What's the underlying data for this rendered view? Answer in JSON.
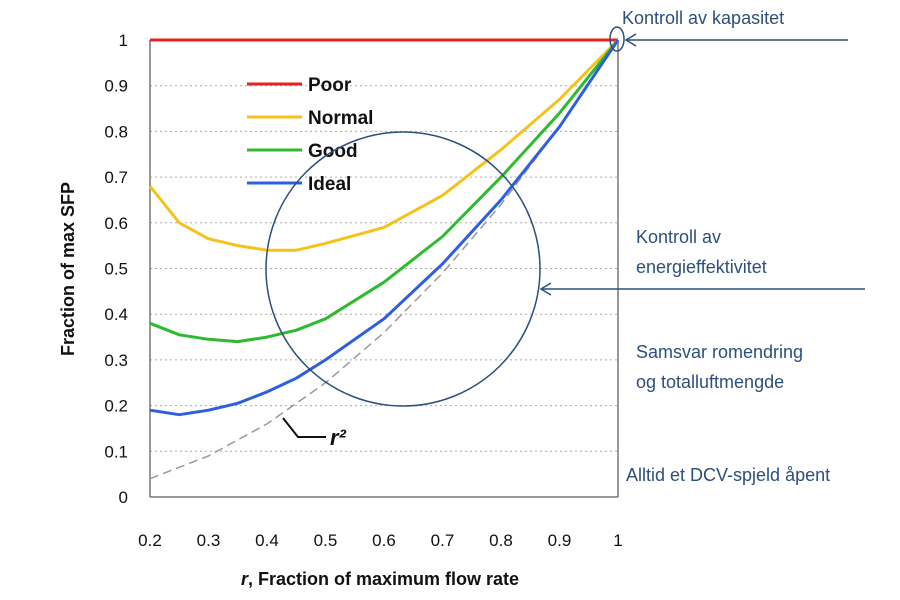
{
  "chart_data": {
    "type": "line",
    "xlabel_var": "r",
    "xlabel": ", Fraction of maximum flow rate",
    "ylabel": "Fraction of max SFP",
    "xlim": [
      0.2,
      1
    ],
    "ylim": [
      0,
      1
    ],
    "x_ticks": [
      "0.2",
      "0.3",
      "0.4",
      "0.5",
      "0.6",
      "0.7",
      "0.8",
      "0.9",
      "1"
    ],
    "y_ticks": [
      "0",
      "0.1",
      "0.2",
      "0.3",
      "0.4",
      "0.5",
      "0.6",
      "0.7",
      "0.8",
      "0.9",
      "1"
    ],
    "grid": "horizontal dotted",
    "legend_position": "top-left",
    "x": [
      0.2,
      0.25,
      0.3,
      0.35,
      0.4,
      0.45,
      0.5,
      0.6,
      0.7,
      0.8,
      0.9,
      1.0
    ],
    "series": [
      {
        "name": "Poor",
        "color": "#e8231f",
        "values": [
          1,
          1,
          1,
          1,
          1,
          1,
          1,
          1,
          1,
          1,
          1,
          1
        ]
      },
      {
        "name": "Normal",
        "color": "#f5c21b",
        "values": [
          0.68,
          0.6,
          0.565,
          0.55,
          0.54,
          0.54,
          0.555,
          0.59,
          0.66,
          0.76,
          0.87,
          1.0
        ]
      },
      {
        "name": "Good",
        "color": "#2dbb2d",
        "values": [
          0.38,
          0.355,
          0.345,
          0.34,
          0.35,
          0.365,
          0.39,
          0.47,
          0.57,
          0.7,
          0.84,
          1.0
        ]
      },
      {
        "name": "Ideal",
        "color": "#2f5fe0",
        "values": [
          0.19,
          0.18,
          0.19,
          0.205,
          0.23,
          0.26,
          0.3,
          0.39,
          0.51,
          0.65,
          0.81,
          1.0
        ]
      }
    ],
    "reference": {
      "name": "r²",
      "color": "#999999",
      "x": [
        0.2,
        0.3,
        0.4,
        0.5,
        0.6,
        0.7,
        0.8,
        0.9,
        1.0
      ],
      "values": [
        0.04,
        0.09,
        0.16,
        0.25,
        0.36,
        0.49,
        0.64,
        0.81,
        1.0
      ]
    },
    "annotations": [
      "Kontroll av kapasitet",
      "Kontroll av",
      "energieffektivitet",
      "Samsvar romendring",
      "og totalluftmengde",
      "Alltid et DCV-spjeld åpent"
    ],
    "annotation_color": "#2c4f7c"
  }
}
